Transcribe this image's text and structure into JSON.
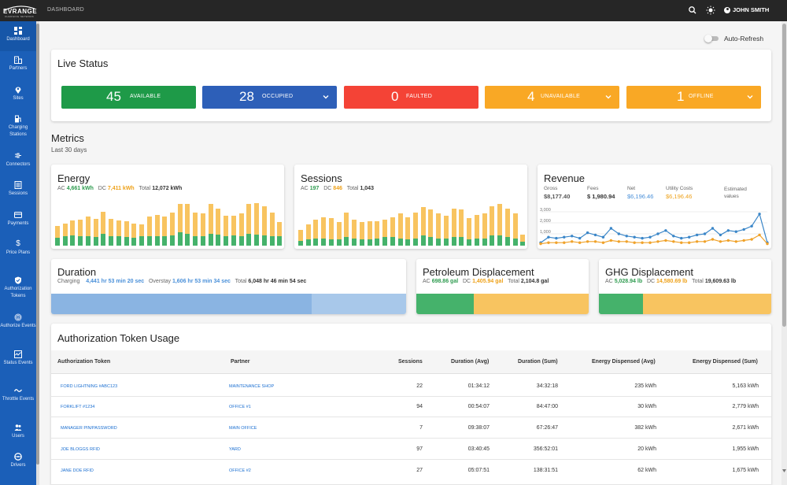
{
  "topbar": {
    "logo_text": "EVRANGE",
    "logo_sub": "CHARGING NETWORK",
    "breadcrumb": "DASHBOARD",
    "user": "JOHN SMITH",
    "icons": [
      "search-icon",
      "brightness-icon",
      "account-circle-icon"
    ]
  },
  "sidebar": {
    "items": [
      {
        "label": "Dashboard",
        "icon": "dashboard-icon"
      },
      {
        "label": "Partners",
        "icon": "building-icon"
      },
      {
        "label": "Sites",
        "icon": "location-pin-icon"
      },
      {
        "label": "Charging Stations",
        "icon": "ev-station-icon"
      },
      {
        "label": "Connectors",
        "icon": "plug-icon"
      },
      {
        "label": "Sessions",
        "icon": "list-icon"
      },
      {
        "label": "Payments",
        "icon": "credit-card-icon"
      },
      {
        "label": "Price Plans",
        "icon": "dollar-icon"
      },
      {
        "label": "Authorization Tokens",
        "icon": "shield-icon"
      },
      {
        "label": "Authorize Events",
        "icon": "fingerprint-icon"
      },
      {
        "label": "Status Events",
        "icon": "status-icon"
      },
      {
        "label": "Throttle Events",
        "icon": "wave-icon"
      },
      {
        "label": "Users",
        "icon": "users-icon"
      },
      {
        "label": "Drivers",
        "icon": "driver-icon"
      }
    ]
  },
  "auto_refresh": {
    "label": "Auto-Refresh",
    "enabled": false
  },
  "live_status": {
    "title": "Live Status",
    "items": [
      {
        "count": "45",
        "label": "AVAILABLE",
        "color": "#1e9a48",
        "has_menu": false
      },
      {
        "count": "28",
        "label": "OCCUPIED",
        "color": "#2d5fb8",
        "has_menu": true
      },
      {
        "count": "0",
        "label": "FAULTED",
        "color": "#f44336",
        "has_menu": false
      },
      {
        "count": "4",
        "label": "UNAVAILABLE",
        "color": "#f9a825",
        "has_menu": true
      },
      {
        "count": "1",
        "label": "OFFLINE",
        "color": "#f9a825",
        "has_menu": true
      }
    ]
  },
  "metrics": {
    "title": "Metrics",
    "subtitle": "Last 30 days",
    "energy": {
      "title": "Energy",
      "ac_label": "AC",
      "ac_value": "4,661 kWh",
      "dc_label": "DC",
      "dc_value": "7,411 kWh",
      "total_label": "Total",
      "total_value": "12,072 kWh"
    },
    "sessions": {
      "title": "Sessions",
      "ac_label": "AC",
      "ac_value": "197",
      "dc_label": "DC",
      "dc_value": "846",
      "total_label": "Total",
      "total_value": "1,043"
    },
    "revenue": {
      "title": "Revenue",
      "gross_label": "Gross",
      "gross_value": "$8,177.40",
      "fees_label": "Fees",
      "fees_value": "$ 1,980.94",
      "net_label": "Net",
      "net_value": "$6,196.46",
      "utility_label": "Utility Costs",
      "utility_value": "$6,196.46",
      "estimated_label": "Estimated values"
    },
    "duration": {
      "title": "Duration",
      "charging_label": "Charging",
      "charging_value": "4,441 hr 53 min 20 sec",
      "overstay_label": "Overstay",
      "overstay_value": "1,606 hr 53 min 34 sec",
      "total_label": "Total",
      "total_value": "6,048 hr 46 min 54 sec"
    },
    "petroleum": {
      "title": "Petroleum Displacement",
      "ac_label": "AC",
      "ac_value": "698.86 gal",
      "dc_label": "DC",
      "dc_value": "1,405.94 gal",
      "total_label": "Total",
      "total_value": "2,104.8 gal"
    },
    "ghg": {
      "title": "GHG Displacement",
      "ac_label": "AC",
      "ac_value": "5,028.94 lb",
      "dc_label": "DC",
      "dc_value": "14,580.69 lb",
      "total_label": "Total",
      "total_value": "19,609.63 lb"
    }
  },
  "chart_data": [
    {
      "type": "bar",
      "name": "Energy",
      "series": [
        {
          "name": "AC",
          "values": [
            12,
            14,
            16,
            14,
            14,
            13,
            18,
            15,
            14,
            13,
            12,
            14,
            15,
            15,
            14,
            16,
            20,
            18,
            15,
            15,
            18,
            17,
            14,
            16,
            15,
            18,
            17,
            16,
            15,
            14
          ]
        },
        {
          "name": "DC",
          "values": [
            18,
            20,
            22,
            26,
            30,
            28,
            34,
            26,
            24,
            24,
            22,
            18,
            30,
            32,
            30,
            34,
            44,
            46,
            36,
            34,
            46,
            40,
            32,
            30,
            34,
            46,
            48,
            44,
            36,
            22
          ]
        }
      ]
    },
    {
      "type": "bar",
      "name": "Sessions",
      "series": [
        {
          "name": "AC",
          "values": [
            8,
            10,
            12,
            12,
            10,
            10,
            14,
            12,
            10,
            10,
            12,
            14,
            14,
            12,
            10,
            12,
            16,
            14,
            12,
            12,
            14,
            14,
            10,
            12,
            12,
            16,
            16,
            14,
            12,
            6
          ]
        },
        {
          "name": "DC",
          "values": [
            18,
            24,
            30,
            34,
            34,
            28,
            40,
            30,
            28,
            30,
            28,
            28,
            32,
            40,
            36,
            42,
            46,
            44,
            40,
            36,
            46,
            44,
            34,
            38,
            40,
            48,
            52,
            46,
            40,
            12
          ]
        }
      ]
    },
    {
      "type": "line",
      "name": "Revenue",
      "y_ticks": [
        "3,000",
        "2,000",
        "1,000"
      ],
      "series": [
        {
          "name": "Gross",
          "values": [
            200,
            700,
            600,
            700,
            800,
            600,
            1100,
            900,
            700,
            1500,
            1000,
            800,
            700,
            600,
            700,
            1000,
            1300,
            800,
            600,
            700,
            900,
            1000,
            1500,
            900,
            1300,
            1200,
            1400,
            1700,
            2800,
            200
          ]
        },
        {
          "name": "Net",
          "values": [
            100,
            200,
            200,
            200,
            300,
            200,
            300,
            300,
            200,
            400,
            300,
            300,
            200,
            200,
            200,
            300,
            400,
            300,
            200,
            200,
            300,
            300,
            500,
            300,
            400,
            300,
            400,
            500,
            900,
            100
          ]
        }
      ]
    },
    {
      "type": "bar",
      "name": "Duration",
      "orientation": "horizontal",
      "series": [
        {
          "name": "Charging",
          "values": [
            4441.89
          ]
        },
        {
          "name": "Overstay",
          "values": [
            1606.89
          ]
        }
      ]
    },
    {
      "type": "bar",
      "name": "Petroleum Displacement",
      "orientation": "horizontal",
      "series": [
        {
          "name": "AC",
          "values": [
            698.86
          ]
        },
        {
          "name": "DC",
          "values": [
            1405.94
          ]
        }
      ]
    },
    {
      "type": "bar",
      "name": "GHG Displacement",
      "orientation": "horizontal",
      "series": [
        {
          "name": "AC",
          "values": [
            5028.94
          ]
        },
        {
          "name": "DC",
          "values": [
            14580.69
          ]
        }
      ]
    }
  ],
  "colors": {
    "ac": "#45b26b",
    "dc": "#f8c460",
    "charging": "#8ab4e2",
    "overstay": "#a8c8ea",
    "sidebar": "#1b5fb8",
    "topbar": "#262626"
  },
  "token_usage": {
    "title": "Authorization Token Usage",
    "columns": [
      "Authorization Token",
      "Partner",
      "Sessions",
      "Duration (Avg)",
      "Duration (Sum)",
      "Energy Dispensed (Avg)",
      "Energy Dispensed (Sum)"
    ],
    "rows": [
      [
        "FORD LIGHTNING #ABC123",
        "MAINTENANCE SHOP",
        "22",
        "01:34:12",
        "34:32:18",
        "235 kWh",
        "5,163 kWh"
      ],
      [
        "FORKLIFT #1234",
        "OFFICE #1",
        "94",
        "00:54:07",
        "84:47:00",
        "30 kWh",
        "2,779 kWh"
      ],
      [
        "MANAGER PIN/PASSWORD",
        "MAIN OFFICE",
        "7",
        "09:38:07",
        "67:26:47",
        "382 kWh",
        "2,671 kWh"
      ],
      [
        "JOE BLOGGS RFID",
        "YARD",
        "97",
        "03:40:45",
        "356:52:01",
        "20 kWh",
        "1,955 kWh"
      ],
      [
        "JANE DOE RFID",
        "OFFICE #2",
        "27",
        "05:07:51",
        "138:31:51",
        "62 kWh",
        "1,675 kWh"
      ]
    ]
  }
}
